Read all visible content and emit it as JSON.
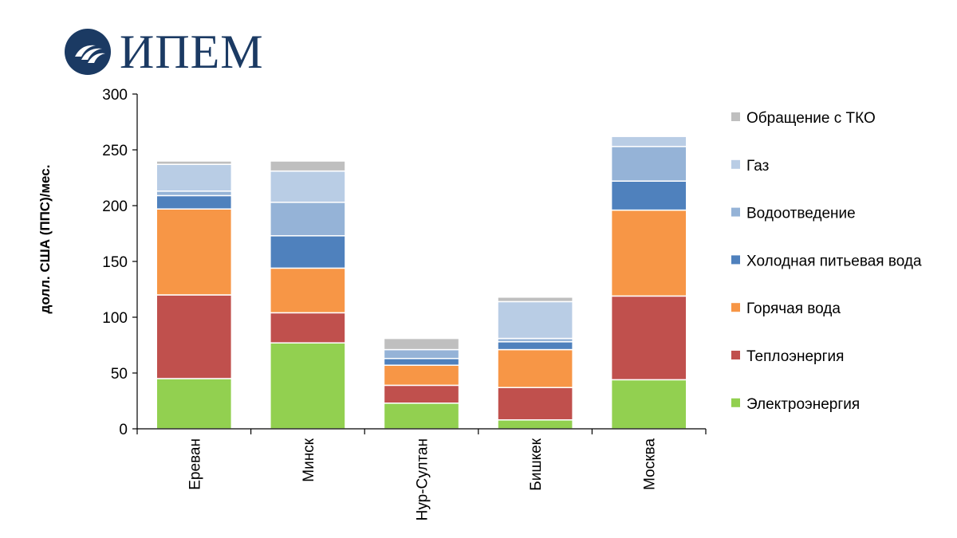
{
  "logo": {
    "text": "ИПЕМ",
    "mark_icon": "ipem-logo-icon",
    "color": "#1b3a63"
  },
  "chart_data": {
    "type": "bar",
    "stacked": true,
    "title": "",
    "xlabel": "",
    "ylabel": "долл. США (ППС)/мес.",
    "ylim": [
      0,
      300
    ],
    "yticks": [
      0,
      50,
      100,
      150,
      200,
      250,
      300
    ],
    "categories": [
      "Ереван",
      "Минск",
      "Нур-Султан",
      "Бишкек",
      "Москва"
    ],
    "series": [
      {
        "name": "Электроэнергия",
        "color": "#92d050",
        "values": [
          45,
          77,
          23,
          8,
          44
        ]
      },
      {
        "name": "Теплоэнергия",
        "color": "#c0504d",
        "values": [
          75,
          27,
          16,
          29,
          75
        ]
      },
      {
        "name": "Горячая вода",
        "color": "#f79646",
        "values": [
          77,
          40,
          18,
          34,
          77
        ]
      },
      {
        "name": "Холодная питьевая вода",
        "color": "#4f81bd",
        "values": [
          12,
          29,
          6,
          7,
          26
        ]
      },
      {
        "name": "Водоотведение",
        "color": "#95b3d7",
        "values": [
          4,
          30,
          8,
          3,
          31
        ]
      },
      {
        "name": "Газ",
        "color": "#b9cde5",
        "values": [
          24,
          28,
          0,
          33,
          9
        ]
      },
      {
        "name": "Обращение с ТКО",
        "color": "#bfbfbf",
        "values": [
          3,
          9,
          10,
          4,
          0
        ]
      }
    ],
    "legend_position": "right"
  }
}
